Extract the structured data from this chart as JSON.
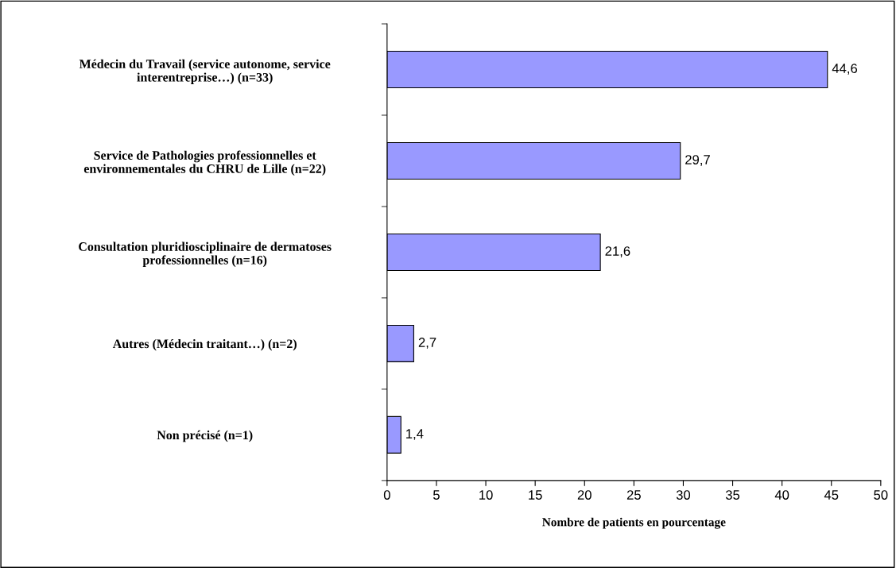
{
  "chart_data": {
    "type": "bar",
    "orientation": "horizontal",
    "xlabel": "Nombre de patients en pourcentage",
    "categories": [
      "Médecin du Travail (service autonome, service\ninterentreprise…) (n=33)",
      "Service de Pathologies professionnelles et\nenvironnementales du CHRU de Lille (n=22)",
      "Consultation pluridiosciplinaire de dermatoses\nprofessionnelles (n=16)",
      "Autres (Médecin traitant…) (n=2)",
      "Non précisé (n=1)"
    ],
    "values": [
      44.6,
      29.7,
      21.6,
      2.7,
      1.4
    ],
    "value_labels": [
      "44,6",
      "29,7",
      "21,6",
      "2,7",
      "1,4"
    ],
    "color": "#9999ff",
    "xlim": [
      0,
      50
    ],
    "xticks": [
      0,
      5,
      10,
      15,
      20,
      25,
      30,
      35,
      40,
      45,
      50
    ],
    "grid": false,
    "legend": false
  }
}
